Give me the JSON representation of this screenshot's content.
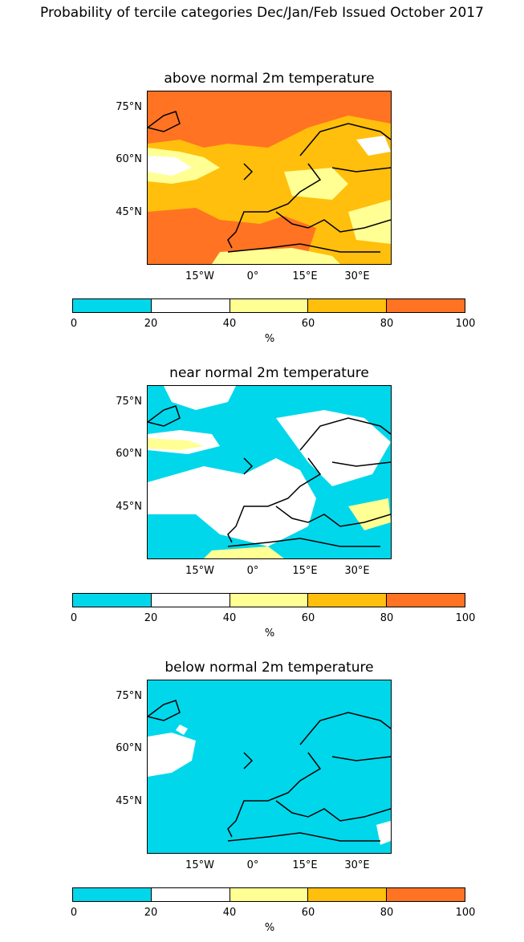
{
  "title": "Probability of tercile categories Dec/Jan/Feb Issued October 2017",
  "colors": {
    "bin_0_20": "#00d7eb",
    "bin_20_40": "#ffffff",
    "bin_40_60": "#ffff94",
    "bin_60_80": "#ffbf0c",
    "bin_80_100": "#ff7322",
    "coastline": "#000000"
  },
  "lat_labels": [
    "75°N",
    "60°N",
    "45°N"
  ],
  "lon_labels": [
    "15°W",
    "0°",
    "15°E",
    "30°E"
  ],
  "colorbar": {
    "ticks": [
      "0",
      "20",
      "40",
      "60",
      "80",
      "100"
    ],
    "unit": "%"
  },
  "panels": [
    {
      "title": "above normal 2m temperature",
      "dominant_bin": "60-80"
    },
    {
      "title": "near normal 2m temperature",
      "dominant_bin": "0-20"
    },
    {
      "title": "below normal 2m temperature",
      "dominant_bin": "0-20"
    }
  ]
}
